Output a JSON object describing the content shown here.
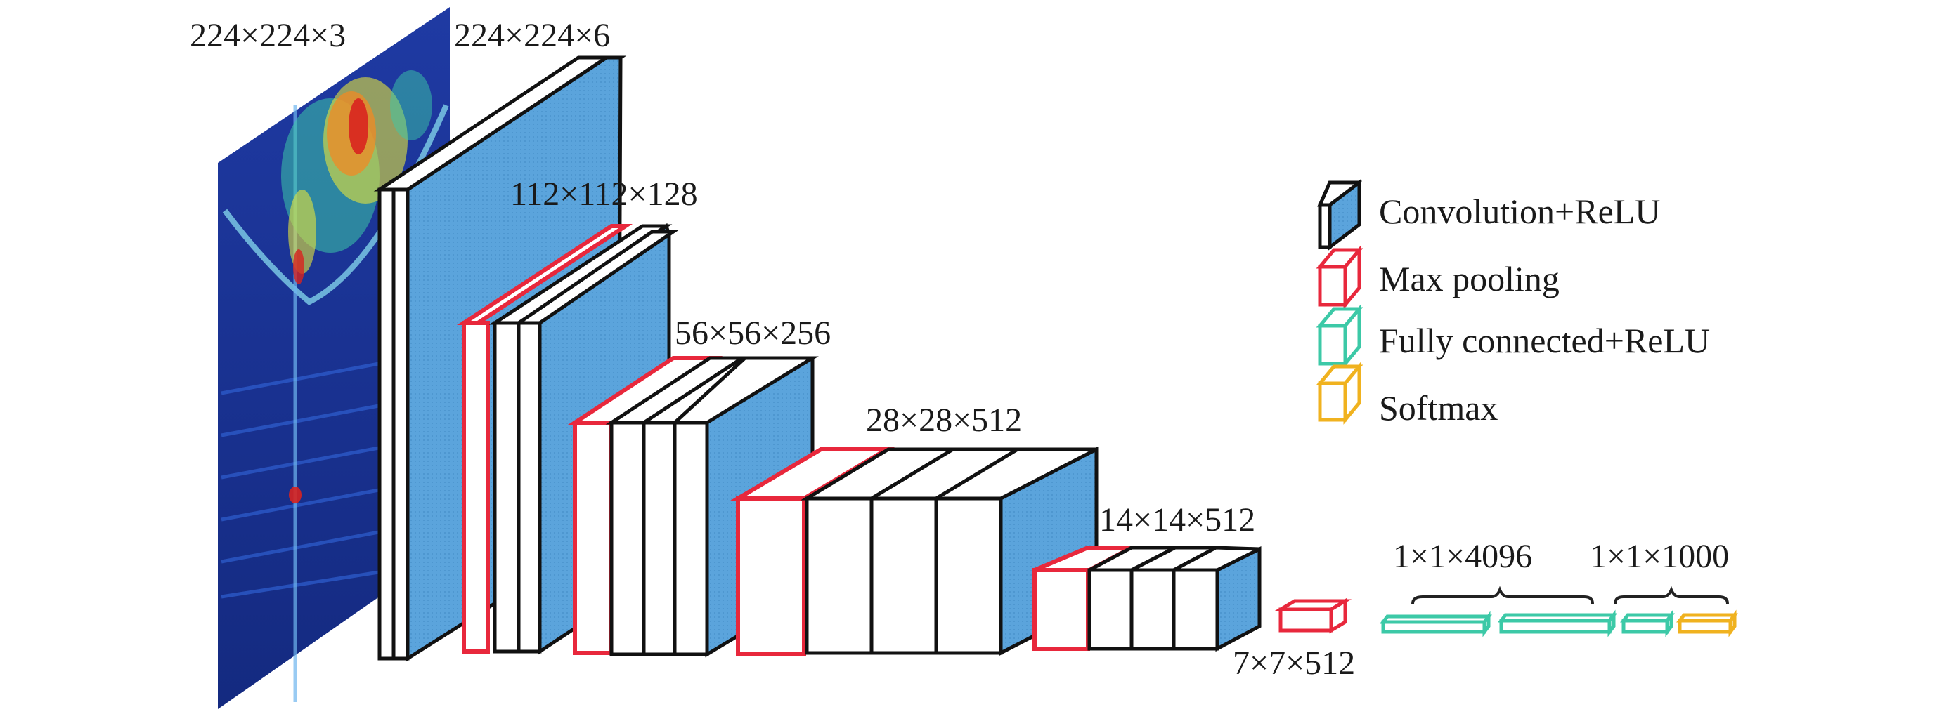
{
  "colors": {
    "conv": "#5ba4dc",
    "pool": "#e8283c",
    "fc": "#3cc9a7",
    "softmax": "#f0b21f",
    "outline": "#111111",
    "heatmap_bg": "#1b2f8f"
  },
  "layer_labels": {
    "input": "224×224×3",
    "conv1": "224×224×6",
    "conv2": "112×112×128",
    "conv3": "56×56×256",
    "conv4": "28×28×512",
    "conv5": "14×14×512",
    "pool5": "7×7×512",
    "fc": "1×1×4096",
    "out": "1×1×1000"
  },
  "legend": {
    "conv": "Convolution+ReLU",
    "pool": "Max pooling",
    "fc": "Fully connected+ReLU",
    "softmax": "Softmax"
  }
}
